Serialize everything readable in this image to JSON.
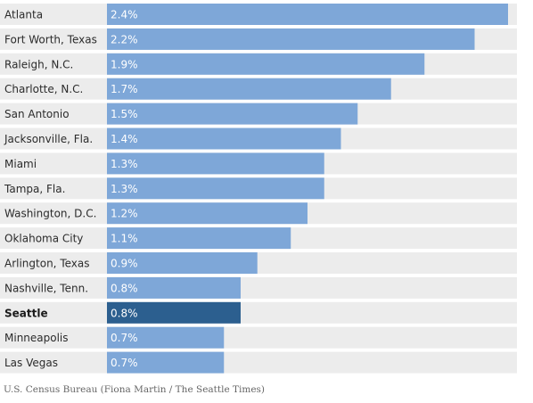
{
  "chart_data": {
    "type": "bar",
    "orientation": "horizontal",
    "categories": [
      "Atlanta",
      "Fort Worth, Texas",
      "Raleigh, N.C.",
      "Charlotte, N.C.",
      "San Antonio",
      "Jacksonville, Fla.",
      "Miami",
      "Tampa, Fla.",
      "Washington, D.C.",
      "Oklahoma City",
      "Arlington, Texas",
      "Nashville, Tenn.",
      "Seattle",
      "Minneapolis",
      "Las Vegas"
    ],
    "values": [
      2.4,
      2.2,
      1.9,
      1.7,
      1.5,
      1.4,
      1.3,
      1.3,
      1.2,
      1.1,
      0.9,
      0.8,
      0.8,
      0.7,
      0.7
    ],
    "value_labels": [
      "2.4%",
      "2.2%",
      "1.9%",
      "1.7%",
      "1.5%",
      "1.4%",
      "1.3%",
      "1.3%",
      "1.2%",
      "1.1%",
      "0.9%",
      "0.8%",
      "0.8%",
      "0.7%",
      "0.7%"
    ],
    "highlight": "Seattle",
    "xlim": [
      0,
      2.4
    ],
    "grid": false,
    "legend": "none",
    "colors": {
      "bar": "#7ea7d8",
      "highlight_bar": "#2c5f8f",
      "row_background": "#ececec",
      "value_text": "#ffffff"
    }
  },
  "source": "U.S. Census Bureau (Fiona Martin / The Seattle Times)"
}
